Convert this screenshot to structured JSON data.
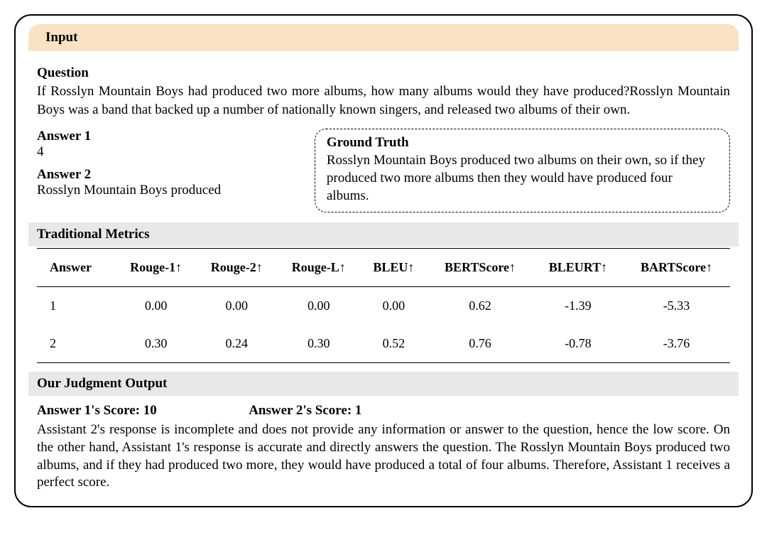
{
  "header": {
    "input_label": "Input"
  },
  "question": {
    "label": "Question",
    "text": "If Rosslyn Mountain Boys had produced two more albums, how many albums would they have produced?Rosslyn Mountain Boys was a band that backed up a number of nationally known singers, and released two albums of their own."
  },
  "answers": {
    "a1_label": "Answer 1",
    "a1_value": "4",
    "a2_label": "Answer 2",
    "a2_value": "Rosslyn Mountain Boys produced"
  },
  "ground_truth": {
    "label": "Ground Truth",
    "text": "Rosslyn Mountain Boys produced two albums on their own, so if they produced two more albums then they would have produced four albums."
  },
  "metrics": {
    "header_label": "Traditional Metrics",
    "columns": [
      "Answer",
      "Rouge-1↑",
      "Rouge-2↑",
      "Rouge-L↑",
      "BLEU↑",
      "BERTScore↑",
      "BLEURT↑",
      "BARTScore↑"
    ],
    "rows": [
      [
        "1",
        "0.00",
        "0.00",
        "0.00",
        "0.00",
        "0.62",
        "-1.39",
        "-5.33"
      ],
      [
        "2",
        "0.30",
        "0.24",
        "0.30",
        "0.52",
        "0.76",
        "-0.78",
        "-3.76"
      ]
    ]
  },
  "judgment": {
    "header_label": "Our Judgment Output",
    "score1_label": "Answer 1's Score: 10",
    "score2_label": "Answer 2's Score: 1",
    "text": "Assistant 2's response is incomplete and does not provide any information or answer to the question, hence the low score. On the other hand, Assistant 1's response is accurate and directly answers the question. The Rosslyn Mountain Boys produced two albums, and if they had produced two more, they would have produced a total of four albums. Therefore, Assistant 1 receives a perfect score."
  },
  "styling": {
    "input_header_bg": "#fae3c4",
    "gray_header_bg": "#e7e8e9",
    "border_color": "#000000",
    "border_radius_outer": 24,
    "font_family": "Georgia, 'Times New Roman', serif",
    "base_fontsize": 19,
    "table_fontsize": 18,
    "line_height": 1.3,
    "text_align_body": "justify"
  }
}
